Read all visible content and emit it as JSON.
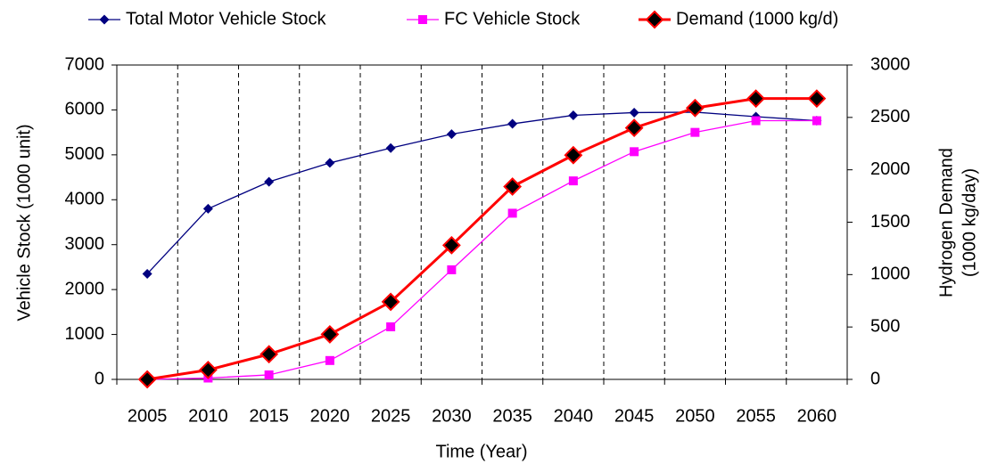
{
  "chart_data": {
    "type": "line",
    "x_label": "Time (Year)",
    "y_label": "Vehicle Stock (1000 unit)",
    "y2_label": [
      "Hydrogen Demand",
      "(1000 kg/day)"
    ],
    "categories": [
      "2005",
      "2010",
      "2015",
      "2020",
      "2025",
      "2030",
      "2035",
      "2040",
      "2045",
      "2050",
      "2055",
      "2060"
    ],
    "ylim": [
      0,
      7000
    ],
    "yticks": [
      0,
      1000,
      2000,
      3000,
      4000,
      5000,
      6000,
      7000
    ],
    "y2lim": [
      0,
      3000
    ],
    "y2ticks": [
      0,
      500,
      1000,
      1500,
      2000,
      2500,
      3000
    ],
    "xgrid": true,
    "legend": "top",
    "series": [
      {
        "name": "Total Motor Vehicle Stock",
        "color": "#000080",
        "marker": "diamond",
        "values": [
          2350,
          3800,
          4400,
          4820,
          5150,
          5460,
          5690,
          5880,
          5940,
          5950,
          5850,
          5760
        ]
      },
      {
        "name": "FC Vehicle Stock",
        "color": "#ff00ff",
        "marker": "square",
        "values": [
          0,
          30,
          100,
          420,
          1170,
          2440,
          3700,
          4420,
          5070,
          5500,
          5760,
          5760
        ]
      },
      {
        "name": "Demand (1000 kg/d)",
        "color": "#ff0000",
        "marker": "diamond-large",
        "axis": "y2",
        "values": [
          0,
          90,
          240,
          430,
          740,
          1280,
          1840,
          2140,
          2400,
          2590,
          2680,
          2680
        ]
      }
    ]
  }
}
